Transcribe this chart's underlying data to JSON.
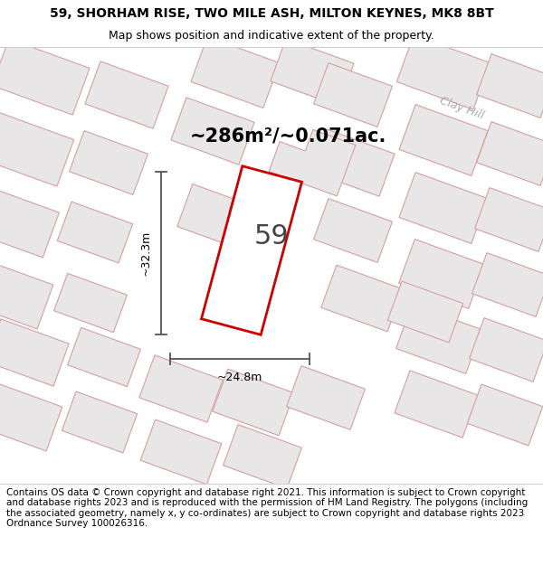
{
  "title": "59, SHORHAM RISE, TWO MILE ASH, MILTON KEYNES, MK8 8BT",
  "subtitle": "Map shows position and indicative extent of the property.",
  "footer": "Contains OS data © Crown copyright and database right 2021. This information is subject to Crown copyright and database rights 2023 and is reproduced with the permission of HM Land Registry. The polygons (including the associated geometry, namely x, y co-ordinates) are subject to Crown copyright and database rights 2023 Ordnance Survey 100026316.",
  "area_text": "~286m²/~0.071ac.",
  "property_number": "59",
  "dim_width": "~24.8m",
  "dim_height": "~32.3m",
  "clay_hill_label": "Clay Hill",
  "map_bg": "#f2f0f0",
  "building_fill": "#e8e6e6",
  "building_edge": "#d4a0a0",
  "plot_outline_color": "#cc0000",
  "title_fontsize": 10,
  "subtitle_fontsize": 9,
  "footer_fontsize": 7.5,
  "area_fontsize": 15,
  "num_fontsize": 22,
  "dim_fontsize": 9,
  "clay_fontsize": 9
}
